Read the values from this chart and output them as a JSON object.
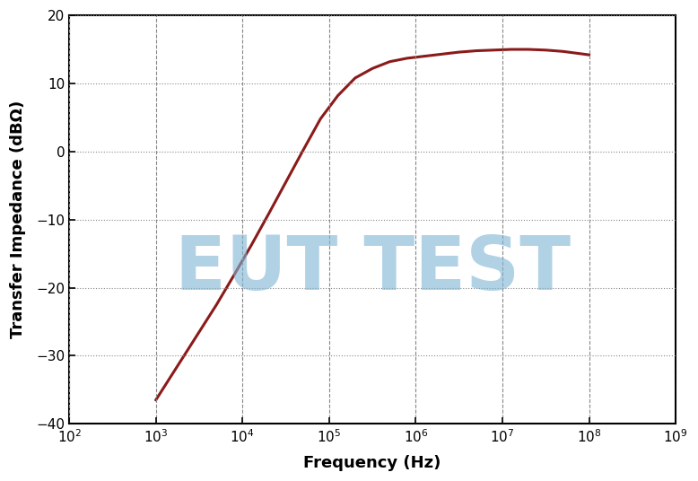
{
  "title": "",
  "xlabel": "Frequency (Hz)",
  "ylabel": "Transfer Impedance (dBΩ)",
  "xlim_log": [
    2,
    9
  ],
  "ylim": [
    -40,
    20
  ],
  "yticks": [
    -40,
    -30,
    -20,
    -10,
    0,
    10,
    20
  ],
  "line_color": "#8B1A1A",
  "line_width": 2.2,
  "grid_color_major_x": "#888888",
  "grid_color_major_y": "#888888",
  "background_color": "#ffffff",
  "watermark_text": "EUT TEST",
  "watermark_color": "#7EB4D4",
  "watermark_alpha": 0.6,
  "curve_points_log10f": [
    3.0,
    3.15,
    3.3,
    3.5,
    3.7,
    3.9,
    4.1,
    4.3,
    4.5,
    4.7,
    4.9,
    5.1,
    5.3,
    5.5,
    5.7,
    5.9,
    6.1,
    6.3,
    6.5,
    6.7,
    6.9,
    7.1,
    7.3,
    7.5,
    7.7,
    8.0
  ],
  "curve_values_dB": [
    -36.5,
    -33.5,
    -30.5,
    -26.5,
    -22.5,
    -18.2,
    -13.8,
    -9.2,
    -4.5,
    0.2,
    4.8,
    8.2,
    10.8,
    12.2,
    13.2,
    13.7,
    14.0,
    14.3,
    14.6,
    14.8,
    14.9,
    15.0,
    15.0,
    14.9,
    14.7,
    14.2
  ]
}
